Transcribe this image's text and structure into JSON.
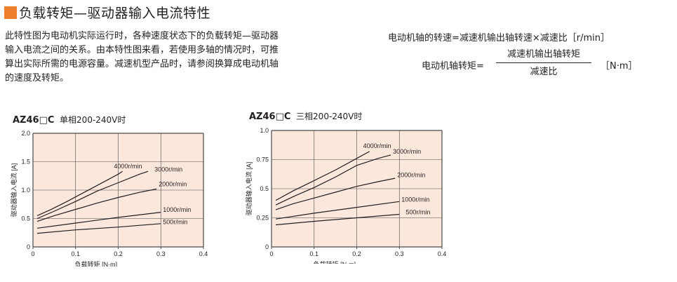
{
  "title": "负载转矩—驱动器输入电流特性",
  "intro_line1": "此特性图为电动机实际运行时，各种速度状态下的负载转矩—驱动器",
  "intro_line2": "输入电流之间的关系。由本特性图来看，若使用多轴的情况时，可推",
  "intro_line3": "算出实际所需的电源容量。减速机型产品时，请参阅换算成电动机轴",
  "intro_line4": "的速度及转矩。",
  "formula1": "电动机轴的转速=减速机输出轴转速×减速比［r/min］",
  "formula2_lhs": "电动机轴转矩=",
  "formula2_numerator": "减速机输出轴转矩",
  "formula2_denominator": "减速比",
  "formula2_unit": "［N·m］",
  "colors": {
    "accent": "#ee7f2d",
    "plot_bg": "#fbe7dc",
    "line": "#231f20"
  },
  "chart_data": [
    {
      "type": "line",
      "model": "AZ46□C",
      "power": "单相200-240V时",
      "xlabel": "负载转矩 [N·m]",
      "ylabel": "驱动器输入电流 [A]",
      "xlim": [
        0,
        0.4
      ],
      "ylim": [
        0,
        2.0
      ],
      "xticks": [
        "0",
        "0.1",
        "0.2",
        "0.3",
        "0.4"
      ],
      "yticks": [
        "0",
        "0.5",
        "1.0",
        "1.5",
        "2.0"
      ],
      "grid": true,
      "series": [
        {
          "name": "4000r/min",
          "x": [
            0.01,
            0.04,
            0.08,
            0.12,
            0.16,
            0.2,
            0.21
          ],
          "y": [
            0.55,
            0.65,
            0.8,
            0.96,
            1.12,
            1.28,
            1.33
          ]
        },
        {
          "name": "3000r/min",
          "x": [
            0.01,
            0.05,
            0.1,
            0.15,
            0.2,
            0.25,
            0.27
          ],
          "y": [
            0.5,
            0.63,
            0.8,
            0.98,
            1.13,
            1.28,
            1.33
          ]
        },
        {
          "name": "2000r/min",
          "x": [
            0.01,
            0.05,
            0.1,
            0.15,
            0.2,
            0.25,
            0.29
          ],
          "y": [
            0.45,
            0.55,
            0.66,
            0.77,
            0.87,
            0.96,
            1.02
          ]
        },
        {
          "name": "1000r/min",
          "x": [
            0.01,
            0.1,
            0.2,
            0.3
          ],
          "y": [
            0.33,
            0.42,
            0.52,
            0.61
          ]
        },
        {
          "name": "500r/min",
          "x": [
            0.01,
            0.1,
            0.2,
            0.3
          ],
          "y": [
            0.24,
            0.3,
            0.35,
            0.41
          ]
        }
      ],
      "labels": [
        {
          "text": "4000r/min",
          "x": 0.19,
          "y": 1.38
        },
        {
          "text": "3000r/min",
          "x": 0.285,
          "y": 1.33
        },
        {
          "text": "2000r/min",
          "x": 0.295,
          "y": 1.07
        },
        {
          "text": "1000r/min",
          "x": 0.305,
          "y": 0.62
        },
        {
          "text": "500r/min",
          "x": 0.305,
          "y": 0.4
        }
      ]
    },
    {
      "type": "line",
      "model": "AZ46□C",
      "power": "三相200-240V时",
      "xlabel": "负载转矩 [N·m]",
      "ylabel": "驱动器输入电流 [A]",
      "xlim": [
        0,
        0.4
      ],
      "ylim": [
        0,
        1.0
      ],
      "xticks": [
        "0",
        "0.1",
        "0.2",
        "0.3",
        "0.4"
      ],
      "yticks": [
        "0",
        "0.25",
        "0.5",
        "0.75",
        "1.0"
      ],
      "grid": true,
      "series": [
        {
          "name": "4000r/min",
          "x": [
            0.01,
            0.05,
            0.1,
            0.15,
            0.2,
            0.23
          ],
          "y": [
            0.4,
            0.48,
            0.57,
            0.66,
            0.76,
            0.82
          ]
        },
        {
          "name": "3000r/min",
          "x": [
            0.01,
            0.05,
            0.1,
            0.15,
            0.2,
            0.25,
            0.28
          ],
          "y": [
            0.36,
            0.43,
            0.51,
            0.6,
            0.7,
            0.76,
            0.79
          ]
        },
        {
          "name": "2000r/min",
          "x": [
            0.01,
            0.05,
            0.1,
            0.15,
            0.2,
            0.25,
            0.29
          ],
          "y": [
            0.32,
            0.37,
            0.42,
            0.47,
            0.52,
            0.56,
            0.59
          ]
        },
        {
          "name": "1000r/min",
          "x": [
            0.01,
            0.1,
            0.2,
            0.3
          ],
          "y": [
            0.24,
            0.29,
            0.34,
            0.39
          ]
        },
        {
          "name": "500r/min",
          "x": [
            0.01,
            0.1,
            0.2,
            0.3
          ],
          "y": [
            0.19,
            0.22,
            0.25,
            0.28
          ]
        }
      ],
      "labels": [
        {
          "text": "4000r/min",
          "x": 0.215,
          "y": 0.85
        },
        {
          "text": "3000r/min",
          "x": 0.285,
          "y": 0.8
        },
        {
          "text": "2000r/min",
          "x": 0.295,
          "y": 0.6
        },
        {
          "text": "1000r/min",
          "x": 0.305,
          "y": 0.39
        },
        {
          "text": "500r/min",
          "x": 0.315,
          "y": 0.28
        }
      ]
    }
  ]
}
